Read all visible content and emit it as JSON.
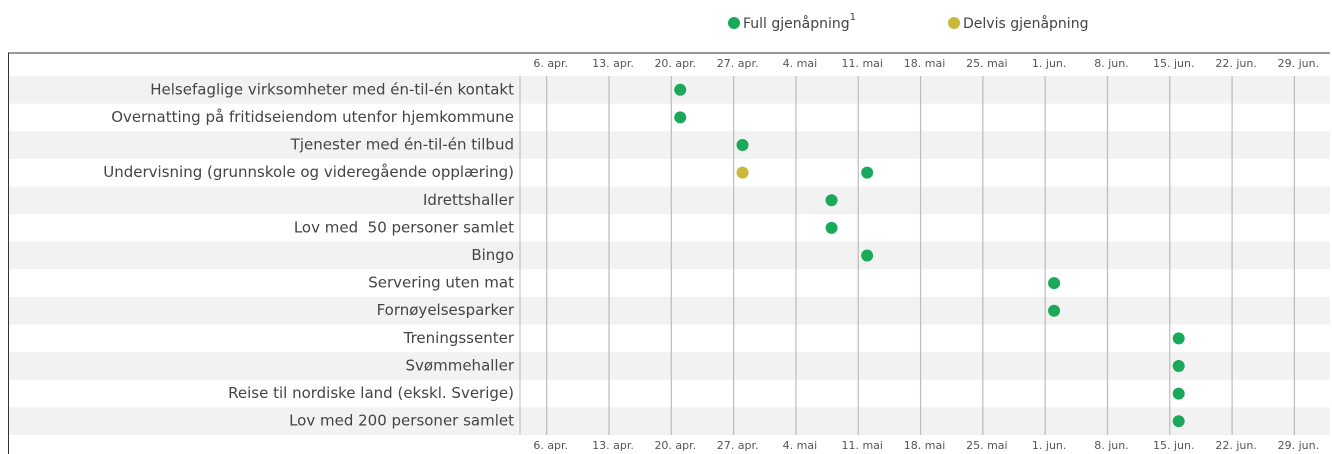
{
  "chart_data": {
    "type": "dot-timeline",
    "categories": [
      "Helsefaglige virksomheter med én-til-én kontakt",
      "Overnatting på fritidseiendom utenfor hjemkommune",
      "Tjenester med én-til-én tilbud",
      "Undervisning (grunnskole og videregående opplæring)",
      "Idrettshaller",
      "Lov med  50 personer samlet",
      "Bingo",
      "Servering uten mat",
      "Fornøyelsesparker",
      "Treningssenter",
      "Svømmehaller",
      "Reise til nordiske land (ekskl. Sverige)",
      "Lov med 200 personer samlet"
    ],
    "series": [
      {
        "name": "Full gjenåpning",
        "footnote": "1",
        "color": "#1aa85a",
        "values": [
          "04-21",
          "04-21",
          "04-28",
          "05-12",
          "05-08",
          "05-08",
          "05-12",
          "06-02",
          "06-02",
          "06-16",
          "06-16",
          "06-16",
          "06-16"
        ]
      },
      {
        "name": "Delvis gjenåpning",
        "color": "#c9b83a",
        "values": [
          null,
          null,
          null,
          "04-28",
          null,
          null,
          null,
          null,
          null,
          null,
          null,
          null,
          null
        ]
      }
    ],
    "xlim": [
      "04-03",
      "07-03"
    ],
    "xticks": [
      {
        "value": "04-06",
        "label": "6. apr."
      },
      {
        "value": "04-13",
        "label": "13. apr."
      },
      {
        "value": "04-20",
        "label": "20. apr."
      },
      {
        "value": "04-27",
        "label": "27. apr."
      },
      {
        "value": "05-04",
        "label": "4. mai"
      },
      {
        "value": "05-11",
        "label": "11. mai"
      },
      {
        "value": "05-18",
        "label": "18. mai"
      },
      {
        "value": "05-25",
        "label": "25. mai"
      },
      {
        "value": "06-01",
        "label": "1. jun."
      },
      {
        "value": "06-08",
        "label": "8. jun."
      },
      {
        "value": "06-15",
        "label": "15. jun."
      },
      {
        "value": "06-22",
        "label": "22. jun."
      },
      {
        "value": "06-29",
        "label": "29. jun."
      }
    ],
    "grid": true
  }
}
